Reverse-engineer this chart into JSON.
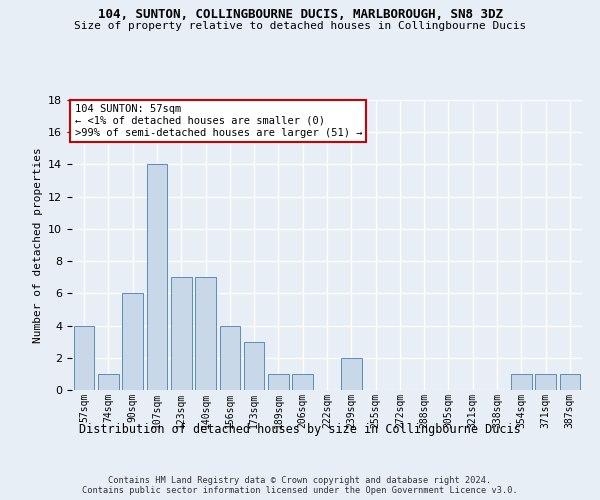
{
  "title": "104, SUNTON, COLLINGBOURNE DUCIS, MARLBOROUGH, SN8 3DZ",
  "subtitle": "Size of property relative to detached houses in Collingbourne Ducis",
  "xlabel": "Distribution of detached houses by size in Collingbourne Ducis",
  "ylabel": "Number of detached properties",
  "categories": [
    "57sqm",
    "74sqm",
    "90sqm",
    "107sqm",
    "123sqm",
    "140sqm",
    "156sqm",
    "173sqm",
    "189sqm",
    "206sqm",
    "222sqm",
    "239sqm",
    "255sqm",
    "272sqm",
    "288sqm",
    "305sqm",
    "321sqm",
    "338sqm",
    "354sqm",
    "371sqm",
    "387sqm"
  ],
  "values": [
    4,
    1,
    6,
    14,
    7,
    7,
    4,
    3,
    1,
    1,
    0,
    2,
    0,
    0,
    0,
    0,
    0,
    0,
    1,
    1,
    1
  ],
  "bar_color": "#c8d8e8",
  "bar_edge_color": "#5b8db8",
  "annotation_text": "104 SUNTON: 57sqm\n← <1% of detached houses are smaller (0)\n>99% of semi-detached houses are larger (51) →",
  "annotation_box_color": "#ffffff",
  "annotation_box_edge_color": "#cc0000",
  "ylim": [
    0,
    18
  ],
  "yticks": [
    0,
    2,
    4,
    6,
    8,
    10,
    12,
    14,
    16,
    18
  ],
  "background_color": "#e8eef5",
  "grid_color": "#ffffff",
  "footer_line1": "Contains HM Land Registry data © Crown copyright and database right 2024.",
  "footer_line2": "Contains public sector information licensed under the Open Government Licence v3.0."
}
